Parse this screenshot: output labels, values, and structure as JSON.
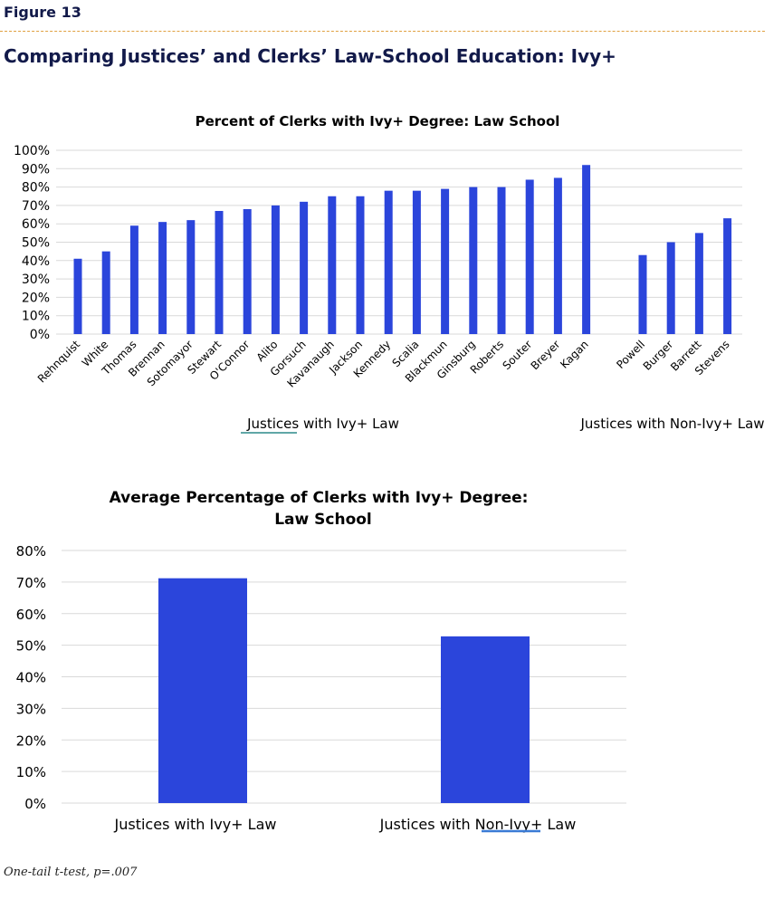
{
  "figure_label": "Figure 13",
  "page_title": "Comparing Justices’ and Clerks’ Law-School Education: Ivy+",
  "footnote": "One-tail t-test, p=.007",
  "colors": {
    "bar": "#2b45db",
    "grid": "#d9d9d9",
    "title_text": "#121a4a",
    "divider": "#e0a040"
  },
  "chart_data": [
    {
      "type": "bar",
      "title": "Percent of Clerks with Ivy+ Degree: Law School",
      "ylim": [
        0,
        100
      ],
      "yticks": [
        "0%",
        "10%",
        "20%",
        "30%",
        "40%",
        "50%",
        "60%",
        "70%",
        "80%",
        "90%",
        "100%"
      ],
      "grid": true,
      "groups": [
        {
          "label": "Justices with Ivy+ Law",
          "categories": [
            "Rehnquist",
            "White",
            "Thomas",
            "Brennan",
            "Sotomayor",
            "Stewart",
            "O'Connor",
            "Alito",
            "Gorsuch",
            "Kavanaugh",
            "Jackson",
            "Kennedy",
            "Scalia",
            "Blackmun",
            "Ginsburg",
            "Roberts",
            "Souter",
            "Breyer",
            "Kagan"
          ],
          "values": [
            41,
            45,
            59,
            61,
            62,
            67,
            68,
            70,
            72,
            75,
            75,
            78,
            78,
            79,
            80,
            80,
            84,
            85,
            92
          ]
        },
        {
          "label": "Justices with Non-Ivy+ Law",
          "categories": [
            "Powell",
            "Burger",
            "Barrett",
            "Stevens"
          ],
          "values": [
            43,
            50,
            55,
            63
          ]
        }
      ]
    },
    {
      "type": "bar",
      "title": "Average Percentage of Clerks with Ivy+ Degree:",
      "title_line2": "Law School",
      "ylim": [
        0,
        80
      ],
      "yticks": [
        "0%",
        "10%",
        "20%",
        "30%",
        "40%",
        "50%",
        "60%",
        "70%",
        "80%"
      ],
      "grid": true,
      "categories": [
        "Justices with Ivy+ Law",
        "Justices with Non-Ivy+ Law"
      ],
      "values": [
        71.2,
        52.8
      ]
    }
  ]
}
